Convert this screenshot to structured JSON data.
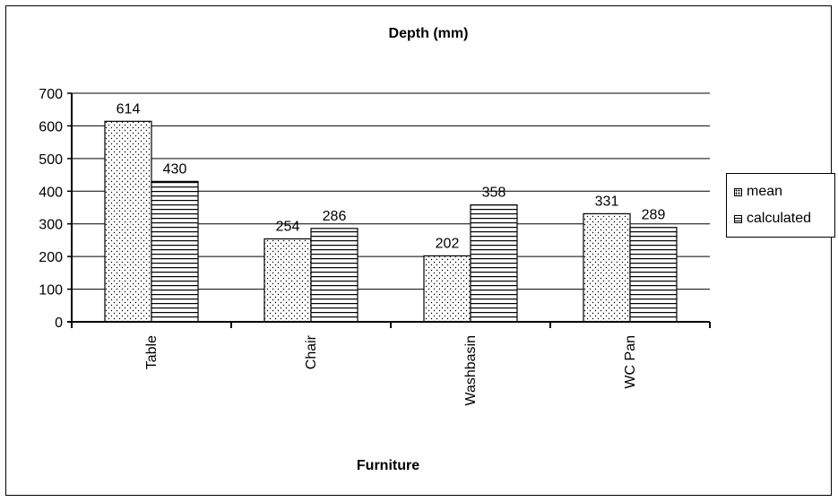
{
  "chart_data": {
    "type": "bar",
    "title": "Depth (mm)",
    "xlabel": "Furniture",
    "ylabel": "",
    "categories": [
      "Table",
      "Chair",
      "Washbasin",
      "WC Pan"
    ],
    "series": [
      {
        "name": "mean",
        "values": [
          614,
          254,
          202,
          331
        ],
        "pattern": "dots"
      },
      {
        "name": "calculated",
        "values": [
          430,
          286,
          358,
          289
        ],
        "pattern": "horizontal-lines"
      }
    ],
    "ylim": [
      0,
      700
    ],
    "yticks": [
      0,
      100,
      200,
      300,
      400,
      500,
      600,
      700
    ],
    "grid": true,
    "legend_position": "right",
    "colors": {
      "bar_stroke": "#000000",
      "grid": "#000000",
      "background": "#ffffff"
    }
  }
}
